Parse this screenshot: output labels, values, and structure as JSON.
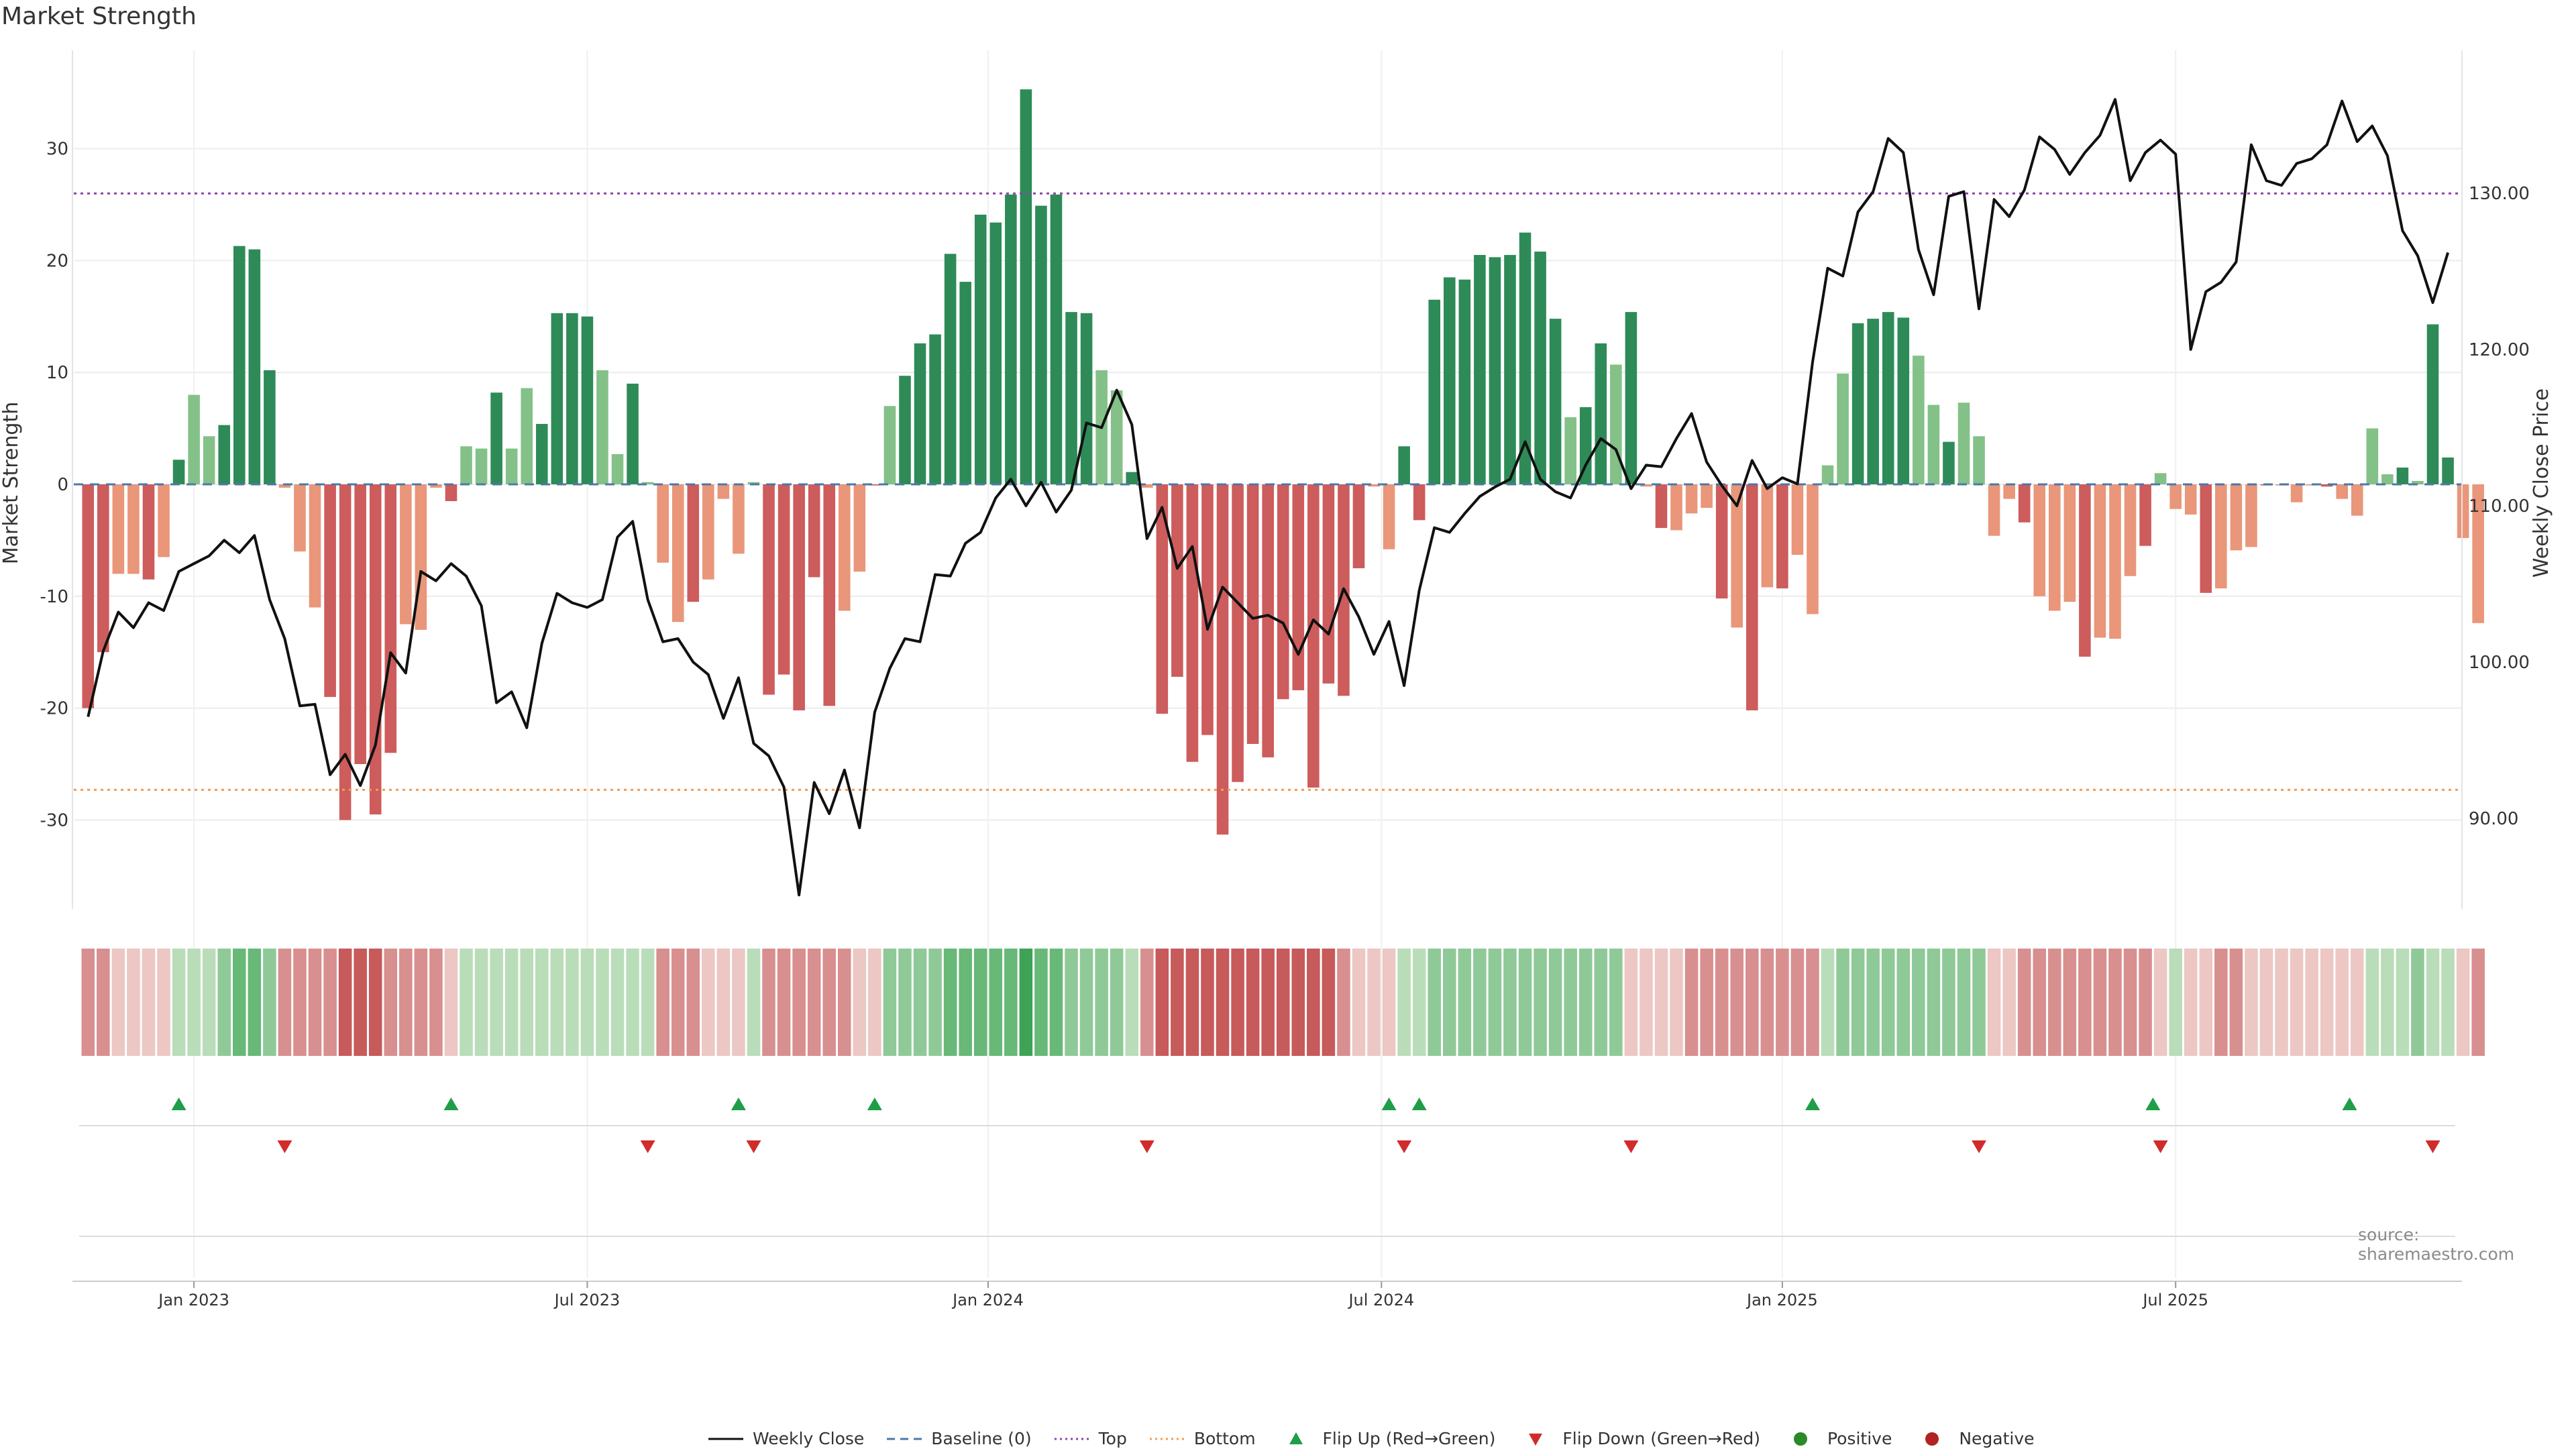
{
  "title": "Market Strength",
  "source_text": "source: sharemaestro.com",
  "colors": {
    "close_line": "#111111",
    "baseline": "#4c78a8",
    "top_line": "#8e44ad",
    "bottom_line": "#f39c4f",
    "green_dark": "#2e8b57",
    "green_light": "#84c188",
    "red_dark": "#cd5c5c",
    "red_light": "#e9967a",
    "flip_up": "#1f9e48",
    "flip_down": "#d22b2b",
    "positive": "#2a8a2a",
    "negative": "#b22222"
  },
  "legend": [
    {
      "label": "Weekly Close",
      "kind": "line",
      "color": "#111111"
    },
    {
      "label": "Baseline (0)",
      "kind": "dash",
      "color": "#4c78a8"
    },
    {
      "label": "Top",
      "kind": "dot",
      "color": "#8e44ad"
    },
    {
      "label": "Bottom",
      "kind": "dot",
      "color": "#f39c4f"
    },
    {
      "label": "Flip Up (Red→Green)",
      "kind": "tri-up",
      "color": "#1f9e48"
    },
    {
      "label": "Flip Down (Green→Red)",
      "kind": "tri-down",
      "color": "#d22b2b"
    },
    {
      "label": "Positive",
      "kind": "circle",
      "color": "#2a8a2a"
    },
    {
      "label": "Negative",
      "kind": "circle",
      "color": "#b22222"
    }
  ],
  "chart_data": {
    "type": "bar",
    "title": "Market Strength",
    "ylabel": "Market Strength",
    "y2label": "Weekly Close Price",
    "ylim": [
      -38,
      38
    ],
    "y2lim": [
      83,
      141
    ],
    "yticks": [
      -30,
      -20,
      -10,
      0,
      10,
      20,
      30
    ],
    "y2ticks": [
      "90.00",
      "100.00",
      "110.00",
      "120.00",
      "130.00"
    ],
    "x_ticks": [
      "Jan 2023",
      "Jul 2023",
      "Jan 2024",
      "Jul 2024",
      "Jan 2025",
      "Jul 2025"
    ],
    "x_tick_weeks": [
      7.5,
      33.5,
      60,
      86,
      112.5,
      138.5
    ],
    "top_level": 26,
    "bottom_level": -27.3,
    "strength": [
      -20,
      -15,
      -8,
      -8,
      -8.5,
      -6.5,
      2.2,
      8,
      4.3,
      5.3,
      21.3,
      21,
      10.2,
      -0.3,
      -6,
      -11,
      -19,
      -30,
      -25,
      -29.5,
      -24,
      -12.5,
      -13,
      -0.3,
      -1.5,
      3.4,
      3.2,
      8.2,
      3.2,
      8.6,
      5.4,
      15.3,
      15.3,
      15,
      10.2,
      2.7,
      9,
      0.2,
      -7,
      -12.3,
      -10.5,
      -8.5,
      -1.3,
      -6.2,
      0.2,
      -18.8,
      -17,
      -20.2,
      -8.3,
      -19.8,
      -11.3,
      -7.8,
      -0.1,
      7,
      9.7,
      12.6,
      13.4,
      20.6,
      18.1,
      24.1,
      23.4,
      25.9,
      35.3,
      24.9,
      25.9,
      15.4,
      15.3,
      10.2,
      8.4,
      1.1,
      -0.3,
      -20.5,
      -17.2,
      -24.8,
      -22.4,
      -31.3,
      -26.6,
      -23.2,
      -24.4,
      -19.2,
      -18.4,
      -27.1,
      -17.8,
      -18.9,
      -7.5,
      -0.2,
      -5.8,
      3.4,
      -3.2,
      16.5,
      18.5,
      18.3,
      20.5,
      20.3,
      20.5,
      22.5,
      20.8,
      14.8,
      6,
      6.9,
      12.6,
      10.7,
      15.4,
      -0.2,
      -3.9,
      -4.1,
      -2.6,
      -2.1,
      -10.2,
      -12.8,
      -20.2,
      -9.2,
      -9.3,
      -6.3,
      -11.6,
      1.7,
      9.9,
      14.4,
      14.8,
      15.4,
      14.9,
      11.5,
      7.1,
      3.8,
      7.3,
      4.3,
      -4.6,
      -1.3,
      -3.4,
      -10,
      -11.3,
      -10.5,
      -15.4,
      -13.7,
      -13.8,
      -8.2,
      -5.5,
      1,
      -2.2,
      -2.7,
      -9.7,
      -9.3,
      -5.9,
      -5.6,
      -0.1,
      -0.1,
      -1.6,
      -0.1,
      -0.2,
      -1.3,
      -2.8,
      5,
      0.9,
      1.5,
      0.3,
      14.3,
      2.4,
      -4.8,
      -12.4
    ],
    "weekly_close": [
      96.5,
      100.7,
      103.2,
      102.2,
      103.8,
      103.3,
      105.8,
      106.3,
      106.8,
      107.8,
      107,
      108.1,
      104,
      101.5,
      97.2,
      97.3,
      92.8,
      94.1,
      92.1,
      94.7,
      100.6,
      99.3,
      105.8,
      105.2,
      106.3,
      105.5,
      103.6,
      97.4,
      98.1,
      95.8,
      101.2,
      104.4,
      103.8,
      103.5,
      104,
      108,
      109,
      104,
      101.3,
      101.5,
      100,
      99.2,
      96.4,
      99,
      94.8,
      94,
      92,
      85.1,
      92.3,
      90.3,
      93.1,
      89.4,
      96.8,
      99.6,
      101.5,
      101.3,
      105.6,
      105.5,
      107.6,
      108.3,
      110.5,
      111.7,
      110,
      111.5,
      109.6,
      111,
      115.3,
      115,
      117.4,
      115.2,
      107.9,
      109.9,
      106,
      107.4,
      102.1,
      104.8,
      103.8,
      102.8,
      103,
      102.5,
      100.5,
      102.7,
      101.8,
      104.7,
      102.9,
      100.5,
      102.6,
      98.5,
      104.6,
      108.6,
      108.3,
      109.5,
      110.6,
      111.2,
      111.7,
      114.1,
      111.7,
      110.9,
      110.5,
      112.6,
      114.3,
      113.6,
      111.1,
      112.6,
      112.5,
      114.3,
      115.9,
      112.8,
      111.3,
      110,
      112.9,
      111.1,
      111.8,
      111.4,
      119.2,
      125.2,
      124.7,
      128.8,
      130.1,
      133.5,
      132.6,
      126.4,
      123.5,
      129.8,
      130.1,
      122.6,
      129.6,
      128.5,
      130.2,
      133.6,
      132.8,
      131.2,
      132.6,
      133.7,
      136,
      130.8,
      132.6,
      133.4,
      132.5,
      120,
      123.7,
      124.3,
      125.6,
      133.1,
      130.8,
      130.5,
      131.9,
      132.2,
      133.1,
      135.9,
      133.3,
      134.3,
      132.4,
      127.6,
      126,
      123,
      126.2
    ],
    "heat_levels": [
      -2,
      -2,
      -1,
      -1,
      -1,
      -1,
      1,
      1,
      1,
      2,
      3,
      3,
      2,
      -2,
      -2,
      -2,
      -2,
      -3,
      -3,
      -3,
      -2,
      -2,
      -2,
      -2,
      -1,
      1,
      1,
      1,
      1,
      1,
      1,
      1,
      1,
      1,
      1,
      1,
      1,
      1,
      -2,
      -2,
      -2,
      -1,
      -1,
      -1,
      1,
      -2,
      -2,
      -2,
      -2,
      -2,
      -2,
      -1,
      -1,
      2,
      2,
      2,
      2,
      3,
      3,
      3,
      3,
      3,
      4,
      3,
      3,
      2,
      2,
      2,
      2,
      1,
      -2,
      -3,
      -3,
      -3,
      -3,
      -3,
      -3,
      -3,
      -3,
      -3,
      -3,
      -3,
      -3,
      -2,
      -1,
      -1,
      -1,
      1,
      1,
      2,
      2,
      2,
      2,
      2,
      2,
      2,
      2,
      2,
      2,
      2,
      2,
      2,
      -1,
      -1,
      -1,
      -1,
      -2,
      -2,
      -2,
      -2,
      -2,
      -2,
      -2,
      -2,
      -2,
      1,
      2,
      2,
      2,
      2,
      2,
      2,
      2,
      2,
      2,
      2,
      -1,
      -1,
      -2,
      -2,
      -2,
      -2,
      -2,
      -2,
      -2,
      -2,
      -2,
      -1,
      1,
      -1,
      -1,
      -2,
      -2,
      -1,
      -1,
      -1,
      -1,
      -1,
      -1,
      -1,
      -1,
      1,
      1,
      1,
      2,
      1,
      1,
      -1,
      -2
    ],
    "flip_up_weeks": [
      6.5,
      24.5,
      43.5,
      52.5,
      86.5,
      88.5,
      114.5,
      137,
      150
    ],
    "flip_down_weeks": [
      13.5,
      37.5,
      44.5,
      70.5,
      87.5,
      102.5,
      125.5,
      137.5,
      155.5
    ]
  }
}
